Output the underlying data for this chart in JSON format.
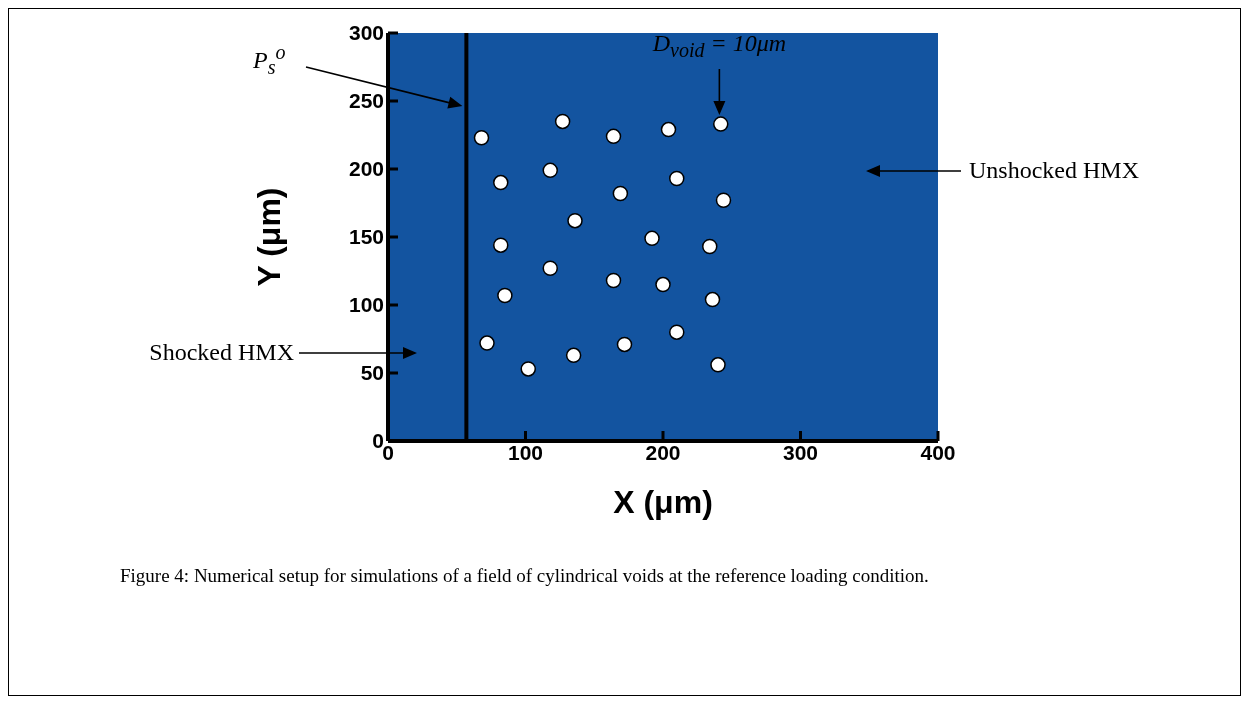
{
  "chart_data": {
    "type": "scatter",
    "xlabel": "X (μm)",
    "ylabel": "Y (μm)",
    "x": [
      68,
      127,
      164,
      204,
      242,
      82,
      118,
      169,
      210,
      244,
      136,
      82,
      192,
      234,
      118,
      85,
      164,
      200,
      236,
      72,
      102,
      135,
      172,
      210,
      240
    ],
    "series": [
      {
        "color": "#ffffff",
        "values": [
          223,
          235,
          224,
          229,
          233,
          190,
          199,
          182,
          193,
          177,
          162,
          144,
          149,
          143,
          127,
          107,
          118,
          115,
          104,
          72,
          53,
          63,
          71,
          80,
          56
        ]
      }
    ],
    "marker": "circle",
    "xlim": [
      0,
      400
    ],
    "ylim": [
      0,
      300
    ],
    "xticks": [
      0,
      100,
      200,
      300,
      400
    ],
    "yticks": [
      0,
      50,
      100,
      150,
      200,
      250,
      300
    ],
    "ref_lines": [
      {
        "axis": "x",
        "value": 57,
        "label": "P$_{s}$$^{o}$",
        "color": "#000000"
      }
    ],
    "bands": [
      {
        "axis": "x",
        "from": 0,
        "to": 400,
        "color": "#1354a0"
      }
    ],
    "annotations": [
      {
        "text": "D$_{void}$ = 10μm",
        "x": 241,
        "y": 233
      },
      "Unshocked HMX",
      "Shocked HMX",
      "Figure 4: Numerical setup for simulations of a field of cylindrical voids at the reference loading condition."
    ]
  }
}
